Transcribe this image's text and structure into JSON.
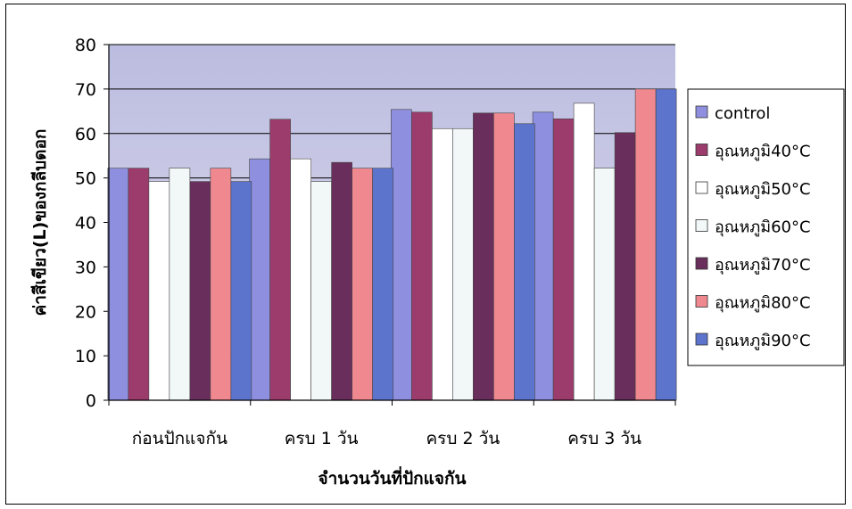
{
  "chart_data": {
    "type": "bar",
    "title": "",
    "xlabel": "จำนวนวันที่ปักแจกัน",
    "ylabel": "ค่าสีเขียว(L)ของกลีบดอก",
    "ylim": [
      0,
      80
    ],
    "yticks": [
      0,
      10,
      20,
      30,
      40,
      50,
      60,
      70,
      80
    ],
    "grid": true,
    "legend_position": "right",
    "categories": [
      "ก่อนปักแจกัน",
      "ครบ 1 วัน",
      "ครบ 2 วัน",
      "ครบ 3 วัน"
    ],
    "series": [
      {
        "name": "control",
        "color": "#8f8fe0",
        "values": [
          52.2,
          54.3,
          65.4,
          64.8
        ]
      },
      {
        "name": "อุณหภูมิ40°C",
        "color": "#9c3c6c",
        "values": [
          52.2,
          63.2,
          64.8,
          63.3
        ]
      },
      {
        "name": "อุณหภูมิ50°C",
        "color": "#ffffff",
        "values": [
          49.2,
          54.3,
          61.1,
          66.8
        ]
      },
      {
        "name": "อุณหภูมิ60°C",
        "color": "#f2f8f8",
        "values": [
          52.2,
          49.2,
          61.1,
          52.2
        ]
      },
      {
        "name": "อุณหภูมิ70°C",
        "color": "#6a2e5c",
        "values": [
          49.2,
          53.5,
          64.6,
          60.2
        ]
      },
      {
        "name": "อุณหภูมิ80°C",
        "color": "#f08890",
        "values": [
          52.2,
          52.2,
          64.6,
          70.0
        ]
      },
      {
        "name": "อุณหภูมิ90°C",
        "color": "#5c74cc",
        "values": [
          49.2,
          52.2,
          62.2,
          70.0
        ]
      }
    ],
    "colors": {
      "plot_bg": "#c9c9e6",
      "grid": "#000000"
    }
  }
}
